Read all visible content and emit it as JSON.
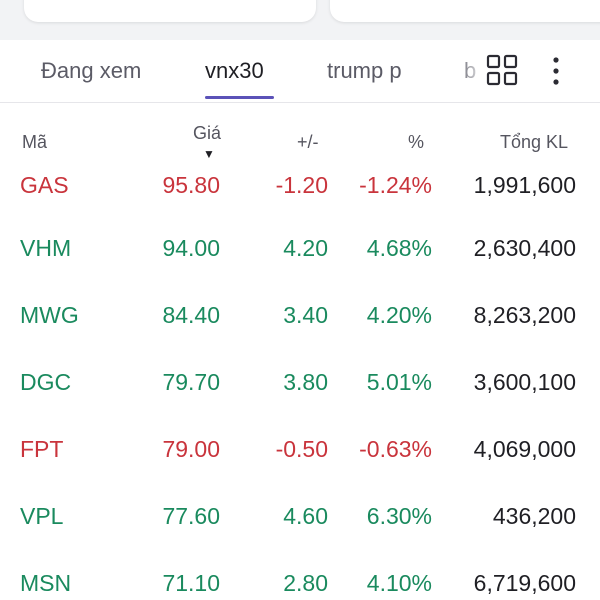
{
  "tabs": [
    {
      "label": "Đang xem",
      "active": false
    },
    {
      "label": "vnx30",
      "active": true
    },
    {
      "label": "trump p",
      "active": false
    },
    {
      "label": "b",
      "active": false
    }
  ],
  "icons": {
    "grid": "grid-view-icon",
    "more": "more-vertical-icon"
  },
  "table": {
    "headers": {
      "symbol": "Mã",
      "price": "Giá",
      "price_sort": "▼",
      "change": "+/-",
      "percent": "%",
      "volume": "Tổng KL"
    },
    "rows": [
      {
        "symbol": "GAS",
        "price": "95.80",
        "change": "-1.20",
        "percent": "-1.24%",
        "volume": "1,991,600",
        "trend": "down"
      },
      {
        "symbol": "VHM",
        "price": "94.00",
        "change": "4.20",
        "percent": "4.68%",
        "volume": "2,630,400",
        "trend": "up"
      },
      {
        "symbol": "MWG",
        "price": "84.40",
        "change": "3.40",
        "percent": "4.20%",
        "volume": "8,263,200",
        "trend": "up"
      },
      {
        "symbol": "DGC",
        "price": "79.70",
        "change": "3.80",
        "percent": "5.01%",
        "volume": "3,600,100",
        "trend": "up"
      },
      {
        "symbol": "FPT",
        "price": "79.00",
        "change": "-0.50",
        "percent": "-0.63%",
        "volume": "4,069,000",
        "trend": "down"
      },
      {
        "symbol": "VPL",
        "price": "77.60",
        "change": "4.60",
        "percent": "6.30%",
        "volume": "436,200",
        "trend": "up"
      },
      {
        "symbol": "MSN",
        "price": "71.10",
        "change": "2.80",
        "percent": "4.10%",
        "volume": "6,719,600",
        "trend": "up"
      }
    ]
  },
  "colors": {
    "up": "#1a8a5e",
    "down": "#c9343c",
    "accent": "#5b52b8"
  }
}
